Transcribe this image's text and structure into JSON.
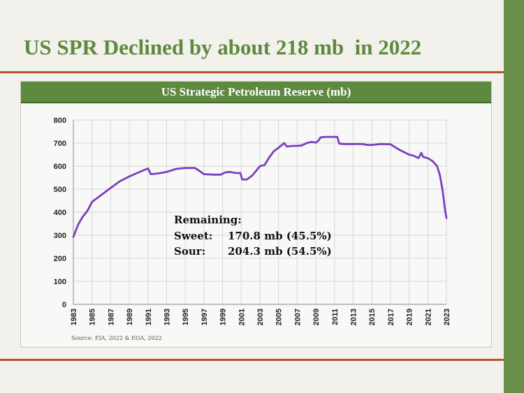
{
  "slide": {
    "title": "US SPR Declined by about 218 mb  in 2022"
  },
  "colors": {
    "title": "#5e8a3e",
    "header_bg": "#5d8a3e",
    "rule": "#b8522a",
    "side_bar": "#6a8f4a",
    "line": "#7b3fc0",
    "grid": "#d6d6d6"
  },
  "chart_data": {
    "type": "line",
    "title": "US Strategic Petroleum Reserve (mb)",
    "source": "Source: EIA, 2022 & EOA, 2022",
    "ylim": [
      0,
      800
    ],
    "xlim": [
      1983,
      2023
    ],
    "yticks": [
      "0",
      "100",
      "200",
      "300",
      "400",
      "500",
      "600",
      "700",
      "800"
    ],
    "xticks": [
      "1983",
      "1985",
      "1987",
      "1989",
      "1991",
      "1993",
      "1995",
      "1997",
      "1999",
      "2001",
      "2003",
      "2005",
      "2007",
      "2009",
      "2011",
      "2013",
      "2015",
      "2017",
      "2019",
      "2021",
      "2023"
    ],
    "grid": true,
    "series": [
      {
        "x": [
          1983.0,
          1983.5,
          1984.0,
          1984.5,
          1985.0,
          1986.0,
          1987.0,
          1988.0,
          1989.0,
          1990.0,
          1990.7,
          1991.0,
          1991.3,
          1992.0,
          1993.0,
          1994.0,
          1995.0,
          1996.0,
          1996.5,
          1997.0,
          1998.0,
          1998.8,
          1999.3,
          1999.8,
          2000.4,
          2000.9,
          2001.1,
          2001.6,
          2002.2,
          2003.0,
          2003.5,
          2004.0,
          2004.5,
          2005.0,
          2005.6,
          2005.9,
          2006.5,
          2007.0,
          2007.5,
          2008.0,
          2008.5,
          2009.0,
          2009.3,
          2009.5,
          2010.0,
          2010.5,
          2011.0,
          2011.3,
          2011.5,
          2012.0,
          2013.0,
          2014.0,
          2014.5,
          2015.0,
          2016.0,
          2017.0,
          2017.5,
          2018.0,
          2018.5,
          2019.0,
          2019.5,
          2020.0,
          2020.3,
          2020.5,
          2021.0,
          2021.5,
          2022.0,
          2022.3,
          2022.6,
          2022.85,
          2023.0
        ],
        "y": [
          293,
          345,
          380,
          405,
          445,
          475,
          505,
          535,
          555,
          573,
          585,
          590,
          565,
          568,
          575,
          588,
          592,
          592,
          580,
          565,
          563,
          563,
          573,
          575,
          570,
          570,
          542,
          542,
          560,
          600,
          605,
          638,
          665,
          680,
          700,
          685,
          688,
          688,
          690,
          700,
          705,
          702,
          712,
          725,
          727,
          727,
          727,
          727,
          698,
          696,
          696,
          696,
          692,
          692,
          696,
          695,
          682,
          670,
          660,
          650,
          645,
          635,
          658,
          640,
          635,
          622,
          600,
          560,
          490,
          410,
          375
        ]
      }
    ],
    "annotation": {
      "heading": "Remaining:",
      "rows": [
        {
          "label": "Sweet:",
          "value": "170.8 mb (45.5%)"
        },
        {
          "label": "Sour:",
          "value": "204.3 mb (54.5%)"
        }
      ]
    }
  }
}
